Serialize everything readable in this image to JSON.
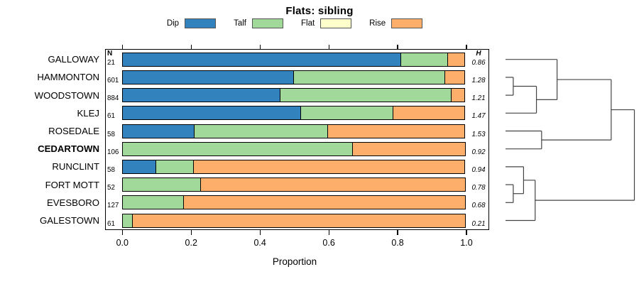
{
  "title": "Flats: sibling",
  "legend": {
    "items": [
      {
        "label": "Dip",
        "color": "#3182BD"
      },
      {
        "label": "Talf",
        "color": "#A1D99B"
      },
      {
        "label": "Flat",
        "color": "#FFFFCC"
      },
      {
        "label": "Rise",
        "color": "#FDAE6B"
      }
    ]
  },
  "columns": {
    "n_header": "N",
    "h_header": "H"
  },
  "x_axis": {
    "label": "Proportion",
    "tick_labels": [
      "0.0",
      "0.2",
      "0.4",
      "0.6",
      "0.8",
      "1.0"
    ]
  },
  "chart_data": {
    "type": "bar",
    "subtype": "horizontal-stacked-proportion",
    "title": "Flats: sibling",
    "xlabel": "Proportion",
    "xlim": [
      0,
      1
    ],
    "x_ticks": [
      0,
      0.2,
      0.4,
      0.6,
      0.8,
      1
    ],
    "grid": false,
    "legend_position": "top",
    "categories": [
      "GALLOWAY",
      "HAMMONTON",
      "WOODSTOWN",
      "KLEJ",
      "ROSEDALE",
      "CEDARTOWN",
      "RUNCLINT",
      "FORT MOTT",
      "EVESBORO",
      "GALESTOWN"
    ],
    "bold_category": "CEDARTOWN",
    "n_values": [
      21,
      601,
      884,
      61,
      58,
      106,
      58,
      52,
      127,
      61
    ],
    "h_values": [
      "0.86",
      "1.28",
      "1.21",
      "1.47",
      "1.53",
      "0.92",
      "0.94",
      "0.78",
      "0.68",
      "0.21"
    ],
    "series": [
      {
        "name": "Dip",
        "color": "#3182BD",
        "values": [
          0.81,
          0.5,
          0.46,
          0.52,
          0.21,
          0,
          0.1,
          0,
          0,
          0
        ]
      },
      {
        "name": "Talf",
        "color": "#A1D99B",
        "values": [
          0.14,
          0.44,
          0.5,
          0.27,
          0.39,
          0.67,
          0.11,
          0.23,
          0.18,
          0.03
        ]
      },
      {
        "name": "Flat",
        "color": "#FFFFCC",
        "values": [
          0,
          0,
          0,
          0,
          0,
          0,
          0,
          0,
          0,
          0
        ]
      },
      {
        "name": "Rise",
        "color": "#FDAE6B",
        "values": [
          0.05,
          0.06,
          0.04,
          0.21,
          0.4,
          0.33,
          0.79,
          0.77,
          0.82,
          0.97
        ]
      }
    ],
    "dendrogram": {
      "side": "right",
      "line_color": "#444444",
      "merges": [
        {
          "a": "HAMMONTON",
          "b": "WOODSTOWN",
          "h": 0.06
        },
        {
          "a": 0,
          "b": "KLEJ",
          "h": 0.24
        },
        {
          "a": "GALLOWAY",
          "b": 1,
          "h": 0.4
        },
        {
          "a": "ROSEDALE",
          "b": "CEDARTOWN",
          "h": 0.28
        },
        {
          "a": 2,
          "b": 3,
          "h": 0.82
        },
        {
          "a": "FORT MOTT",
          "b": "EVESBORO",
          "h": 0.06
        },
        {
          "a": "RUNCLINT",
          "b": 5,
          "h": 0.14
        },
        {
          "a": 6,
          "b": "GALESTOWN",
          "h": 0.23
        },
        {
          "a": 4,
          "b": 7,
          "h": 1.0
        }
      ]
    }
  }
}
